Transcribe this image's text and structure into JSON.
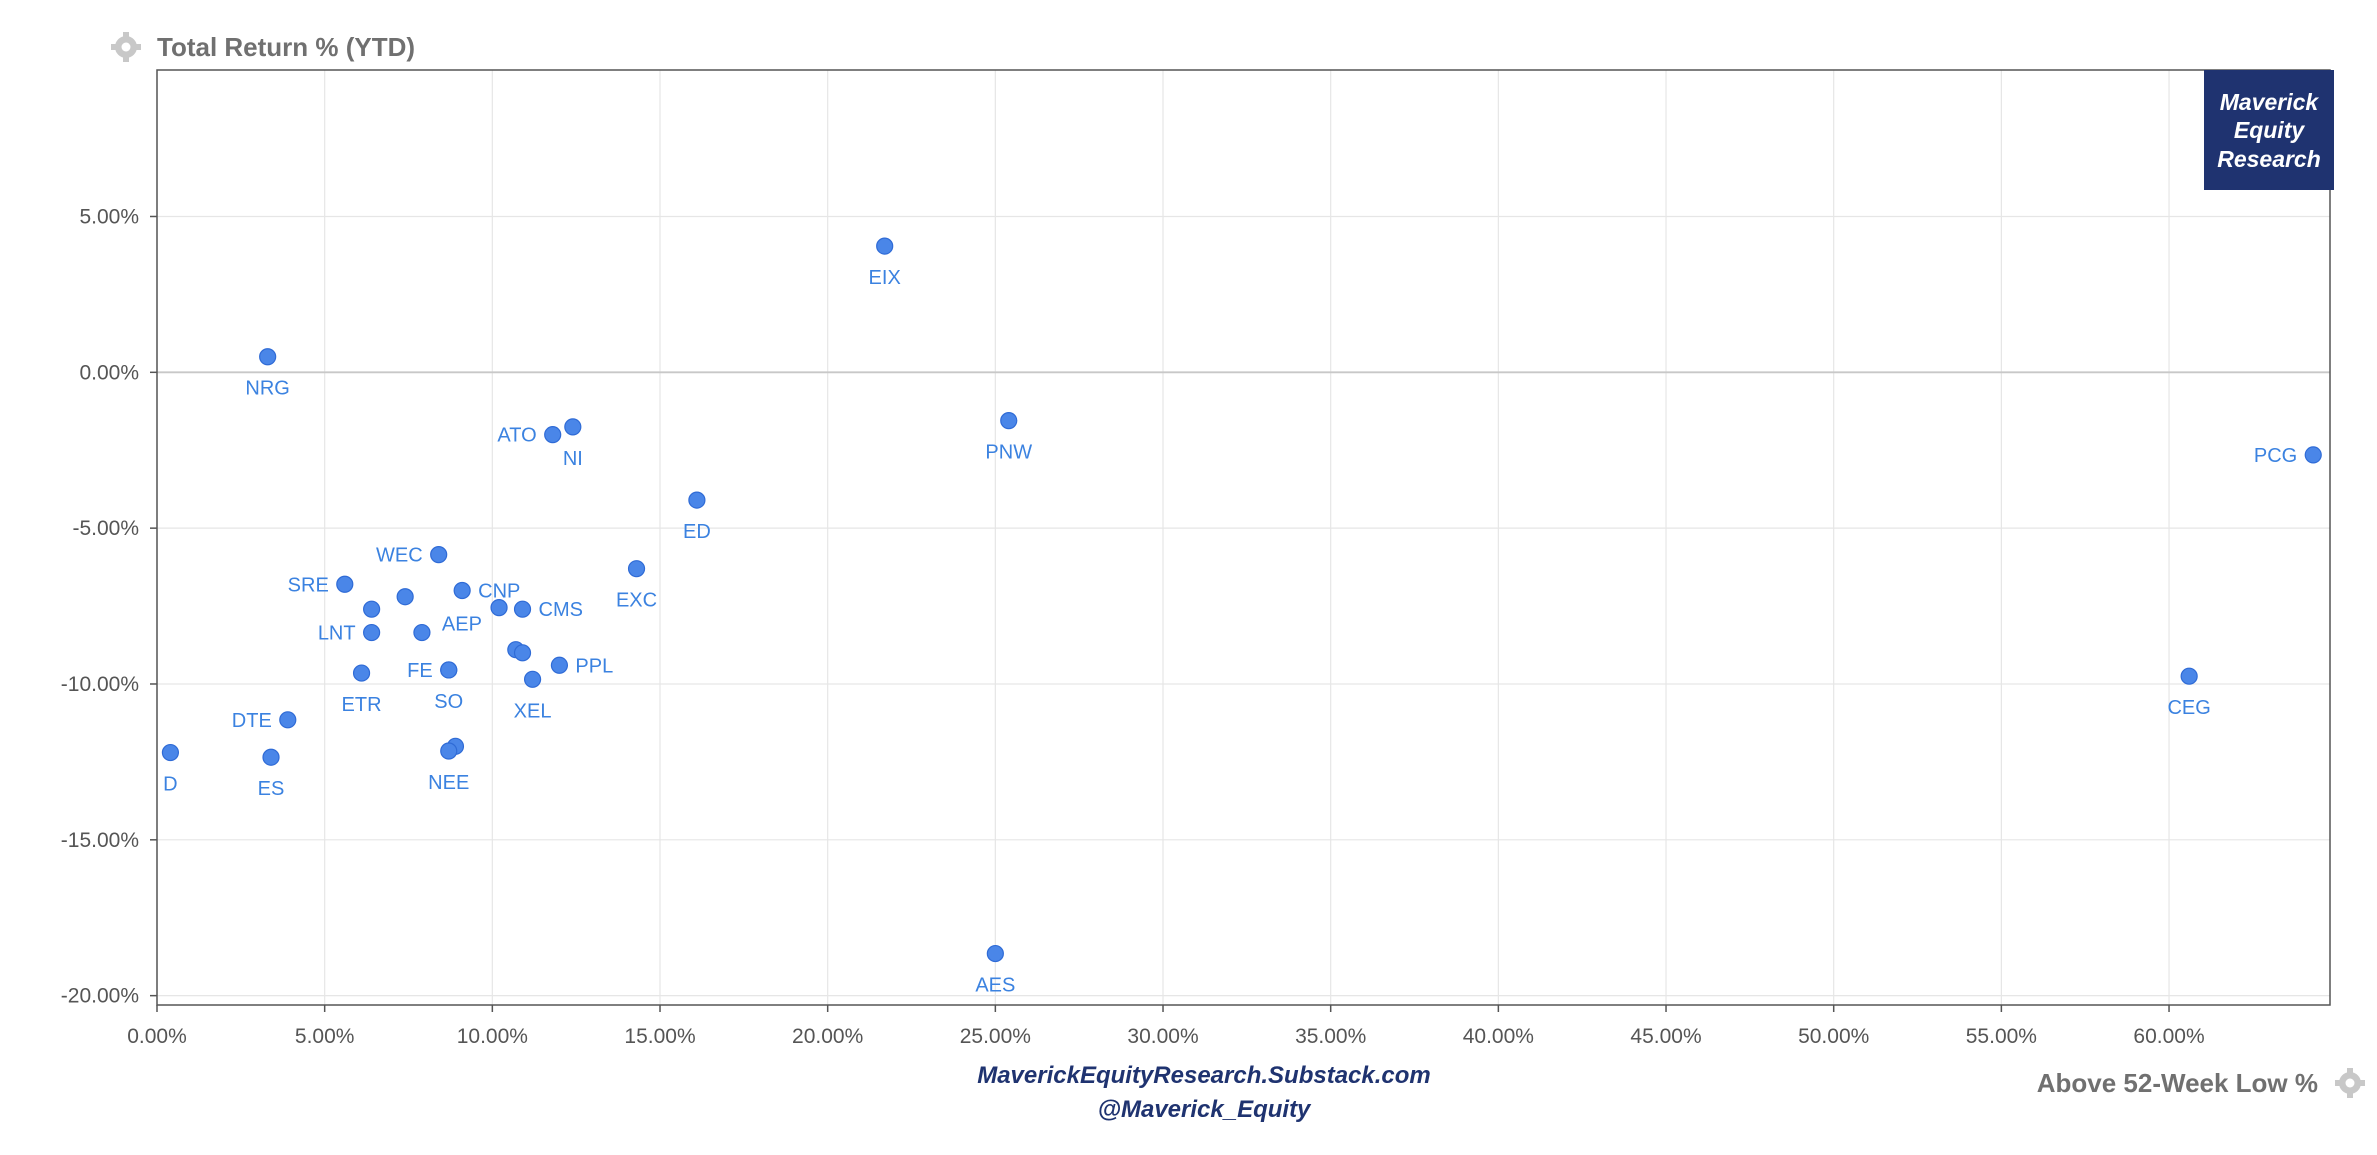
{
  "chart_data": {
    "type": "scatter",
    "title": "",
    "ylabel": "Total Return % (YTD)",
    "xlabel": "Above 52-Week Low %",
    "xlim": [
      0,
      64.8
    ],
    "ylim": [
      -20.3,
      9.7
    ],
    "x_ticks": [
      0,
      5,
      10,
      15,
      20,
      25,
      30,
      35,
      40,
      45,
      50,
      55,
      60
    ],
    "x_tick_labels": [
      "0.00%",
      "5.00%",
      "10.00%",
      "15.00%",
      "20.00%",
      "25.00%",
      "30.00%",
      "35.00%",
      "40.00%",
      "45.00%",
      "50.00%",
      "55.00%",
      "60.00%"
    ],
    "y_ticks": [
      5,
      0,
      -5,
      -10,
      -15,
      -20
    ],
    "y_tick_labels": [
      "5.00%",
      "0.00%",
      "-5.00%",
      "-10.00%",
      "-15.00%",
      "-20.00%"
    ],
    "grid": true,
    "zero_line": true,
    "colors": {
      "point_fill": "#4a86e8",
      "point_stroke": "#2f6bd6",
      "label": "#3b82e0",
      "grid": "#e6e6e6",
      "zero_line": "#c8c8c8",
      "axis": "#555555",
      "watermark_bg": "#1f3370"
    },
    "points": [
      {
        "label": "EIX",
        "x": 21.7,
        "y": 4.05,
        "label_pos": "below"
      },
      {
        "label": "NRG",
        "x": 3.3,
        "y": 0.5,
        "label_pos": "below"
      },
      {
        "label": "PNW",
        "x": 25.4,
        "y": -1.55,
        "label_pos": "below"
      },
      {
        "label": "ATO",
        "x": 11.8,
        "y": -2.0,
        "label_pos": "left"
      },
      {
        "label": "NI",
        "x": 12.4,
        "y": -1.75,
        "label_pos": "below"
      },
      {
        "label": "PCG",
        "x": 64.3,
        "y": -2.65,
        "label_pos": "left"
      },
      {
        "label": "ED",
        "x": 16.1,
        "y": -4.1,
        "label_pos": "below"
      },
      {
        "label": "WEC",
        "x": 8.4,
        "y": -5.85,
        "label_pos": "left"
      },
      {
        "label": "EXC",
        "x": 14.3,
        "y": -6.3,
        "label_pos": "below"
      },
      {
        "label": "SRE",
        "x": 5.6,
        "y": -6.8,
        "label_pos": "left"
      },
      {
        "label": "",
        "x": 7.4,
        "y": -7.2,
        "label_pos": "none"
      },
      {
        "label": "CNP",
        "x": 9.1,
        "y": -7.0,
        "label_pos": "right"
      },
      {
        "label": "",
        "x": 6.4,
        "y": -7.6,
        "label_pos": "none"
      },
      {
        "label": "",
        "x": 10.2,
        "y": -7.55,
        "label_pos": "none"
      },
      {
        "label": "CMS",
        "x": 10.9,
        "y": -7.6,
        "label_pos": "right"
      },
      {
        "label": "AEP",
        "x": 7.9,
        "y": -8.35,
        "label_pos": "above-right"
      },
      {
        "label": "LNT",
        "x": 6.4,
        "y": -8.35,
        "label_pos": "left"
      },
      {
        "label": "",
        "x": 10.7,
        "y": -8.9,
        "label_pos": "none"
      },
      {
        "label": "",
        "x": 10.9,
        "y": -9.0,
        "label_pos": "none"
      },
      {
        "label": "PPL",
        "x": 12.0,
        "y": -9.4,
        "label_pos": "right"
      },
      {
        "label": "FE",
        "x": 8.7,
        "y": -9.55,
        "label_pos": "left"
      },
      {
        "label": "SO",
        "x": 8.7,
        "y": -9.55,
        "label_pos": "below"
      },
      {
        "label": "ETR",
        "x": 6.1,
        "y": -9.65,
        "label_pos": "below"
      },
      {
        "label": "XEL",
        "x": 11.2,
        "y": -9.85,
        "label_pos": "below"
      },
      {
        "label": "CEG",
        "x": 60.6,
        "y": -9.75,
        "label_pos": "below"
      },
      {
        "label": "DTE",
        "x": 3.9,
        "y": -11.15,
        "label_pos": "left"
      },
      {
        "label": "",
        "x": 8.9,
        "y": -12.0,
        "label_pos": "none"
      },
      {
        "label": "NEE",
        "x": 8.7,
        "y": -12.15,
        "label_pos": "below"
      },
      {
        "label": "D",
        "x": 0.4,
        "y": -12.2,
        "label_pos": "below"
      },
      {
        "label": "ES",
        "x": 3.4,
        "y": -12.35,
        "label_pos": "below"
      },
      {
        "label": "AES",
        "x": 25.0,
        "y": -18.65,
        "label_pos": "below"
      }
    ]
  },
  "watermark": {
    "lines": [
      "Maverick",
      "Equity",
      "Research"
    ]
  },
  "footer": {
    "website": "MaverickEquityResearch.Substack.com",
    "handle": "@Maverick_Equity"
  }
}
